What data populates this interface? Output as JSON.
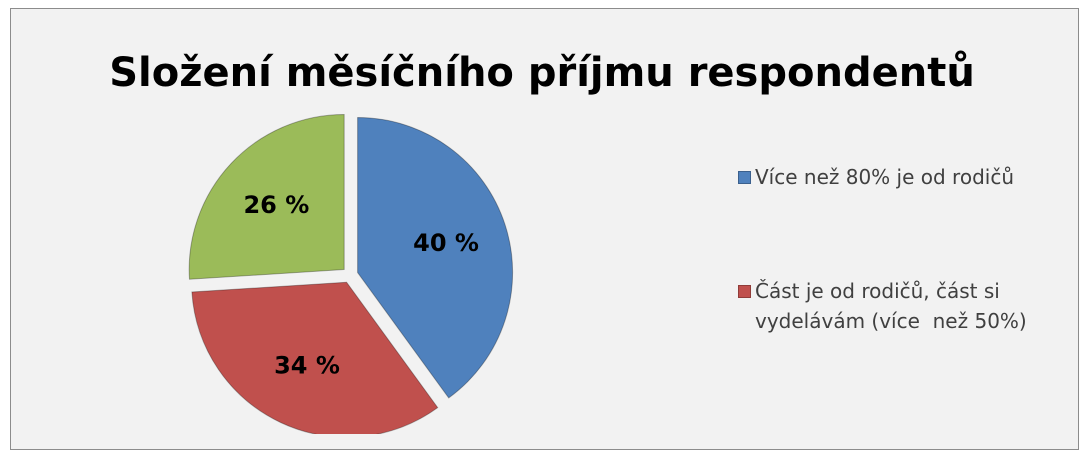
{
  "chart_data": {
    "type": "pie",
    "title": "Složení měsíčního příjmu respondentů",
    "categories": [
      "Více než 80% je od rodičů",
      "Část je od rodičů, část si vydelávám (více  než 50%)",
      null
    ],
    "values": [
      40,
      34,
      26
    ],
    "value_labels": [
      "40 %",
      "34 %",
      "26 %"
    ],
    "colors": [
      "#4f81bd",
      "#c0504d",
      "#9bbb59"
    ],
    "legend": "right"
  }
}
